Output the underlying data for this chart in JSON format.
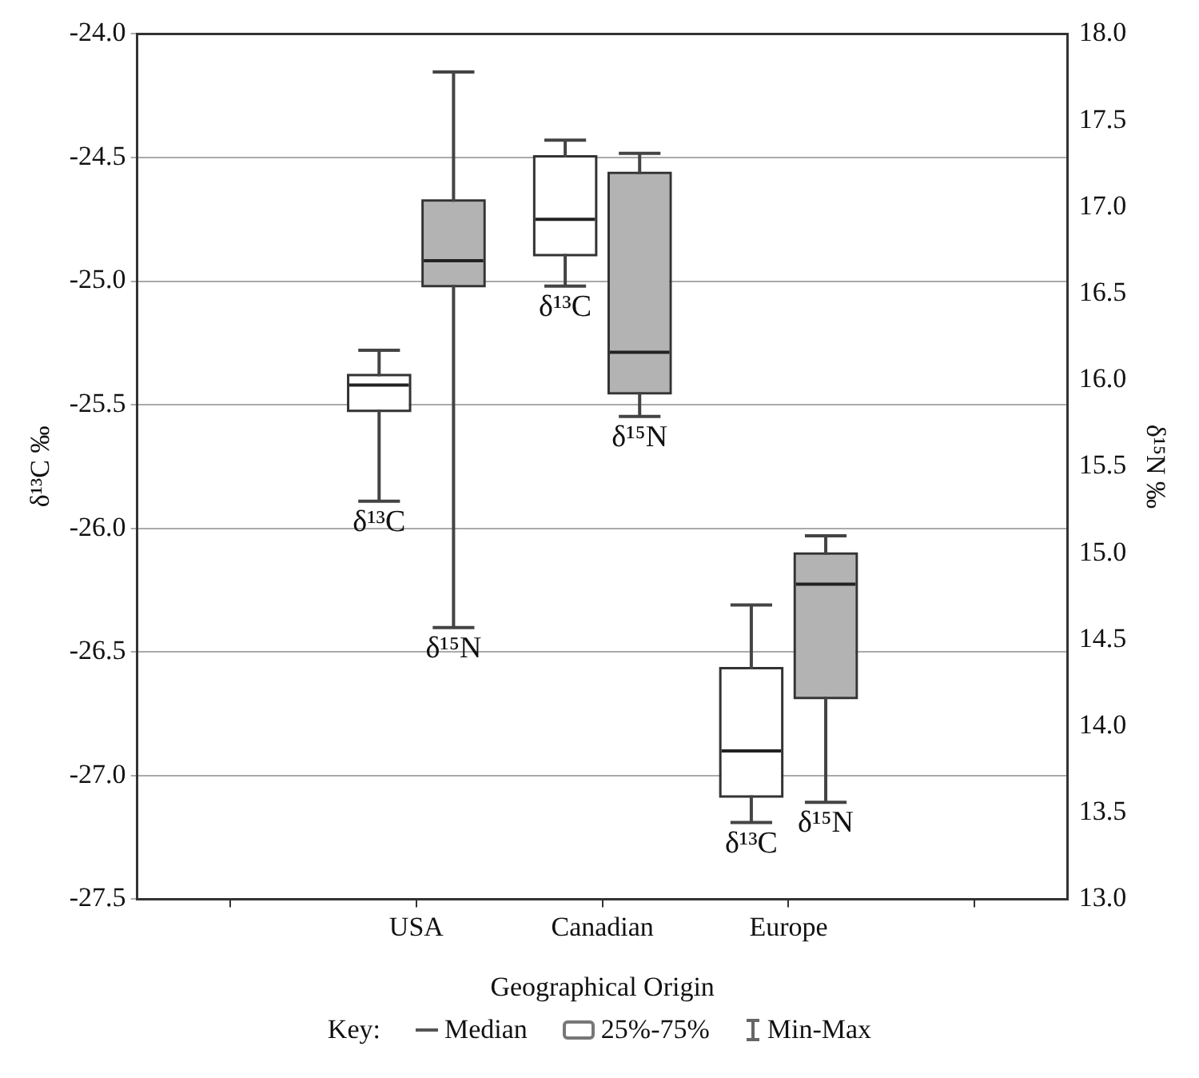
{
  "chart_data": {
    "type": "box",
    "xlabel": "Geographical Origin",
    "ylabel": "δ¹³C ‰",
    "y2label": "δ¹⁵N ‰",
    "categories": [
      null,
      "USA",
      "Canadian",
      "Europe",
      null
    ],
    "series": [
      {
        "name": "δ¹³C",
        "color": "#ffffff",
        "boxes": [
          null,
          {
            "low": -25.89,
            "q1": -25.52,
            "median": -25.42,
            "q3": -25.385,
            "high": -25.28
          },
          {
            "low": -25.02,
            "q1": -24.89,
            "median": -24.75,
            "q3": -24.5,
            "high": -24.43
          },
          {
            "low": -27.19,
            "q1": -27.08,
            "median": -26.9,
            "q3": -26.57,
            "high": -26.31
          },
          null
        ]
      },
      {
        "name": "δ¹⁵N",
        "color": "#b3b3b3",
        "axis": "y2",
        "boxes": [
          null,
          {
            "low": 14.57,
            "q1": 16.55,
            "median": 16.69,
            "q3": 17.03,
            "high": 17.78
          },
          {
            "low": 15.79,
            "q1": 15.93,
            "median": 16.16,
            "q3": 17.19,
            "high": 17.31
          },
          {
            "low": 13.56,
            "q1": 14.17,
            "median": 14.82,
            "q3": 14.99,
            "high": 15.1
          },
          null
        ]
      }
    ],
    "ylim": [
      -27.5,
      -24.0
    ],
    "yticks": [
      {
        "value": -27.5,
        "label": "-27.5"
      },
      {
        "value": -27,
        "label": "-27.0"
      },
      {
        "value": -26.5,
        "label": "-26.5"
      },
      {
        "value": -26,
        "label": "-26.0"
      },
      {
        "value": -25.5,
        "label": "-25.5"
      },
      {
        "value": -25,
        "label": "-25.0"
      },
      {
        "value": -24.5,
        "label": "-24.5"
      },
      {
        "value": -24,
        "label": "-24.0"
      }
    ],
    "y2lim": [
      13.0,
      18.0
    ],
    "y2ticks": [
      {
        "value": 13,
        "label": "13.0"
      },
      {
        "value": 13.5,
        "label": "13.5"
      },
      {
        "value": 14,
        "label": "14.0"
      },
      {
        "value": 14.5,
        "label": "14.5"
      },
      {
        "value": 15,
        "label": "15.0"
      },
      {
        "value": 15.5,
        "label": "15.5"
      },
      {
        "value": 16,
        "label": "16.0"
      },
      {
        "value": 16.5,
        "label": "16.5"
      },
      {
        "value": 17,
        "label": "17.0"
      },
      {
        "value": 17.5,
        "label": "17.5"
      },
      {
        "value": 18,
        "label": "18.0"
      }
    ],
    "grid": "y",
    "annotations": [
      "Key:",
      "Median",
      "25%-75%",
      "Min-Max"
    ]
  }
}
